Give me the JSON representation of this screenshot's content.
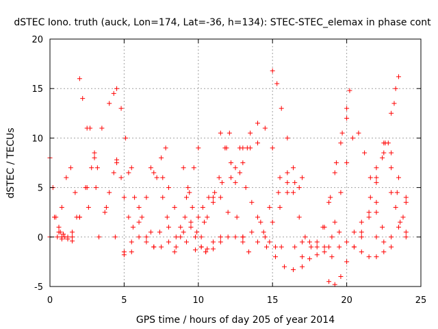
{
  "chart_data": {
    "type": "scatter",
    "title": "dSTEC Iono. truth (auck, Lon=174, Lat=-36, h=134): STEC-STEC_elemax in phase cont",
    "xlabel": "GPS time / hours of day 205 of year 2014",
    "ylabel": "dSTEC  / TECUs",
    "xlim": [
      0,
      25
    ],
    "ylim": [
      -5,
      20
    ],
    "xticks": [
      0,
      5,
      10,
      15,
      20,
      25
    ],
    "yticks": [
      -5,
      0,
      5,
      10,
      15,
      20
    ],
    "grid": true,
    "marker": "plus",
    "color": "#ff0000",
    "series": [
      {
        "x": [
          0.0,
          0.2,
          0.4,
          0.6,
          0.8
        ],
        "y": [
          8.0,
          5.0,
          2.0,
          0.5,
          0.0
        ]
      },
      {
        "x": [
          0.0,
          0.3,
          0.6,
          0.9,
          1.2,
          1.5
        ],
        "y": [
          0.0,
          2.0,
          1.0,
          0.3,
          -0.2,
          -0.4
        ]
      },
      {
        "x": [
          0.5,
          0.8,
          1.1,
          1.4,
          1.7
        ],
        "y": [
          0.0,
          3.0,
          6.0,
          7.0,
          4.5
        ]
      },
      {
        "x": [
          0.7,
          1.0,
          1.5,
          2.0,
          2.6
        ],
        "y": [
          0.5,
          0.0,
          0.5,
          2.0,
          3.0
        ]
      },
      {
        "x": [
          2.0,
          2.2,
          2.5,
          2.8,
          3.1
        ],
        "y": [
          16.0,
          14.0,
          11.0,
          7.0,
          5.0
        ]
      },
      {
        "x": [
          1.5,
          2.0,
          2.5,
          3.0,
          3.5,
          4.0,
          4.3
        ],
        "y": [
          0.0,
          2.0,
          5.0,
          8.0,
          11.0,
          13.5,
          14.5
        ]
      },
      {
        "x": [
          0.8,
          1.2,
          1.8,
          2.4,
          3.0
        ],
        "y": [
          -0.2,
          0.0,
          2.0,
          5.0,
          8.5
        ]
      },
      {
        "x": [
          2.7,
          3.2,
          3.8,
          4.4,
          5.0,
          5.5
        ],
        "y": [
          11.0,
          7.0,
          3.0,
          0.0,
          -1.8,
          -1.5
        ]
      },
      {
        "x": [
          3.3,
          3.7,
          4.0,
          4.3,
          4.5
        ],
        "y": [
          0.0,
          2.5,
          4.5,
          6.5,
          7.8
        ]
      },
      {
        "x": [
          4.5,
          4.8,
          5.1,
          5.5,
          6.0,
          6.5
        ],
        "y": [
          15.0,
          13.0,
          10.0,
          7.0,
          3.0,
          0.0
        ]
      },
      {
        "x": [
          4.5,
          4.8,
          5.0,
          5.3,
          5.6,
          6.0,
          6.5,
          7.0
        ],
        "y": [
          7.5,
          6.0,
          4.0,
          2.0,
          1.0,
          0.0,
          -0.5,
          -1.0
        ]
      },
      {
        "x": [
          5.3,
          5.7,
          6.2,
          6.8,
          7.4,
          7.9
        ],
        "y": [
          6.5,
          4.0,
          2.0,
          0.5,
          0.5,
          2.0
        ]
      },
      {
        "x": [
          5.0,
          5.5,
          6.0,
          6.5,
          7.0,
          7.5,
          7.8
        ],
        "y": [
          -1.5,
          -0.5,
          1.5,
          4.0,
          6.5,
          8.0,
          9.0
        ]
      },
      {
        "x": [
          6.8,
          7.2,
          7.6,
          8.0,
          8.4
        ],
        "y": [
          7.0,
          6.0,
          4.0,
          1.0,
          -1.5
        ]
      },
      {
        "x": [
          7.0,
          7.5,
          8.0,
          8.5,
          9.0,
          9.5
        ],
        "y": [
          -1.0,
          -1.0,
          -0.5,
          0.0,
          0.5,
          1.0
        ]
      },
      {
        "x": [
          7.6,
          8.0,
          8.4,
          8.8,
          9.2,
          9.8
        ],
        "y": [
          6.0,
          5.0,
          3.0,
          1.0,
          -0.5,
          -1.3
        ]
      },
      {
        "x": [
          8.5,
          8.8,
          9.1,
          9.4,
          9.7,
          10.0
        ],
        "y": [
          -1.0,
          0.0,
          2.0,
          4.5,
          7.0,
          9.0
        ]
      },
      {
        "x": [
          9.0,
          9.2,
          9.5,
          9.8,
          10.2,
          10.5
        ],
        "y": [
          7.0,
          4.0,
          1.5,
          0.0,
          -1.0,
          -1.5
        ]
      },
      {
        "x": [
          9.3,
          9.6,
          9.9,
          10.2,
          10.6,
          11.0
        ],
        "y": [
          5.0,
          3.0,
          0.5,
          -1.0,
          -1.2,
          -0.5
        ]
      },
      {
        "x": [
          10.0,
          10.3,
          10.7,
          11.1,
          11.5
        ],
        "y": [
          2.0,
          3.0,
          4.0,
          4.5,
          4.0
        ]
      },
      {
        "x": [
          10.2,
          10.6,
          11.0,
          11.4,
          11.8,
          12.1
        ],
        "y": [
          0.0,
          2.0,
          4.0,
          6.0,
          9.0,
          10.5
        ]
      },
      {
        "x": [
          11.5,
          11.9,
          12.2,
          12.6,
          13.0
        ],
        "y": [
          10.5,
          9.0,
          6.0,
          2.0,
          0.0
        ]
      },
      {
        "x": [
          10.5,
          11.0,
          11.5,
          12.0,
          12.5,
          13.0,
          13.4
        ],
        "y": [
          -1.5,
          -1.2,
          -0.5,
          0.0,
          0.0,
          -0.5,
          -1.5
        ]
      },
      {
        "x": [
          10.4,
          11.0,
          11.6,
          12.2,
          12.8,
          13.3
        ],
        "y": [
          1.5,
          3.5,
          5.5,
          7.5,
          9.0,
          9.0
        ]
      },
      {
        "x": [
          11.5,
          12.0,
          12.5,
          13.0,
          13.5,
          14.0
        ],
        "y": [
          0.0,
          2.5,
          5.5,
          7.5,
          9.0,
          9.5
        ]
      },
      {
        "x": [
          12.5,
          13.0,
          13.5,
          14.0,
          14.5,
          15.0,
          15.5
        ],
        "y": [
          7.0,
          9.0,
          10.5,
          11.5,
          11.0,
          9.0,
          6.0
        ]
      },
      {
        "x": [
          12.8,
          13.2,
          13.6,
          14.0,
          14.4,
          14.8,
          15.2,
          15.6
        ],
        "y": [
          6.5,
          5.0,
          3.5,
          2.0,
          0.5,
          -0.5,
          -1.0,
          -1.0
        ]
      },
      {
        "x": [
          13.0,
          13.6,
          14.2,
          14.8,
          15.4,
          16.0
        ],
        "y": [
          0.0,
          0.5,
          1.5,
          3.0,
          4.5,
          5.5
        ]
      },
      {
        "x": [
          15.0,
          15.3,
          15.6,
          16.0,
          16.4,
          16.8
        ],
        "y": [
          16.8,
          15.5,
          13.0,
          10.0,
          7.0,
          5.0
        ]
      },
      {
        "x": [
          14.0,
          14.6,
          15.2,
          15.8,
          16.4,
          17.0
        ],
        "y": [
          -0.5,
          -1.0,
          -2.0,
          -3.0,
          -3.3,
          -3.0
        ]
      },
      {
        "x": [
          14.5,
          15.0,
          15.5,
          16.0,
          16.5,
          17.0
        ],
        "y": [
          0.0,
          1.5,
          3.0,
          4.5,
          5.5,
          6.0
        ]
      },
      {
        "x": [
          16.0,
          16.4,
          16.8,
          17.2,
          17.6
        ],
        "y": [
          6.5,
          4.5,
          2.0,
          0.0,
          -1.0
        ]
      },
      {
        "x": [
          17.0,
          17.5,
          18.0,
          18.5,
          19.0,
          19.5
        ],
        "y": [
          -2.0,
          -2.2,
          -1.8,
          -1.0,
          0.0,
          0.5
        ]
      },
      {
        "x": [
          16.5,
          17.0,
          17.5,
          18.0,
          18.5,
          19.0
        ],
        "y": [
          -1.0,
          -0.5,
          -0.5,
          -1.0,
          -1.5,
          -2.0
        ]
      },
      {
        "x": [
          18.0,
          18.4,
          18.8,
          19.2,
          19.6,
          20.0,
          20.2
        ],
        "y": [
          -0.5,
          1.0,
          3.5,
          6.5,
          9.5,
          13.0,
          14.8
        ]
      },
      {
        "x": [
          18.5,
          18.9,
          19.3,
          19.7,
          20.0
        ],
        "y": [
          1.0,
          4.0,
          7.5,
          10.5,
          12.0
        ]
      },
      {
        "x": [
          18.8,
          19.2,
          19.6,
          20.0,
          20.4
        ],
        "y": [
          -1.0,
          1.5,
          4.5,
          7.5,
          10.0
        ]
      },
      {
        "x": [
          18.8,
          19.2,
          19.6,
          20.0,
          20.5,
          21.0
        ],
        "y": [
          -4.5,
          -4.8,
          -4.0,
          -2.5,
          -1.0,
          0.0
        ]
      },
      {
        "x": [
          19.5,
          20.0,
          20.5,
          21.0,
          21.5,
          22.0
        ],
        "y": [
          -1.0,
          -0.5,
          0.5,
          1.5,
          2.0,
          2.5
        ]
      },
      {
        "x": [
          20.8,
          21.2,
          21.6,
          22.0,
          22.4
        ],
        "y": [
          10.5,
          8.5,
          6.0,
          3.5,
          1.0
        ]
      },
      {
        "x": [
          20.5,
          21.0,
          21.5,
          22.0,
          22.5,
          23.0
        ],
        "y": [
          -1.0,
          -1.5,
          -2.0,
          -2.0,
          -1.5,
          -1.0
        ]
      },
      {
        "x": [
          21.0,
          21.5,
          22.0,
          22.5,
          23.0,
          23.3
        ],
        "y": [
          0.5,
          2.5,
          5.5,
          8.5,
          12.5,
          15.0
        ]
      },
      {
        "x": [
          21.6,
          22.0,
          22.4,
          22.8,
          23.2,
          23.5
        ],
        "y": [
          4.0,
          6.0,
          8.0,
          9.5,
          13.5,
          16.2
        ]
      },
      {
        "x": [
          22.0,
          22.5,
          23.0,
          23.5,
          24.0
        ],
        "y": [
          7.0,
          9.5,
          8.5,
          6.0,
          4.0
        ]
      },
      {
        "x": [
          22.6,
          23.0,
          23.4,
          23.8,
          24.0
        ],
        "y": [
          9.5,
          7.0,
          4.5,
          2.0,
          0.5
        ]
      },
      {
        "x": [
          22.0,
          22.5,
          23.0,
          23.5,
          24.0
        ],
        "y": [
          0.0,
          -0.5,
          0.0,
          1.0,
          3.5
        ]
      },
      {
        "x": [
          23.0,
          23.3,
          23.6,
          24.0
        ],
        "y": [
          4.5,
          3.0,
          1.5,
          0.0
        ]
      }
    ]
  }
}
